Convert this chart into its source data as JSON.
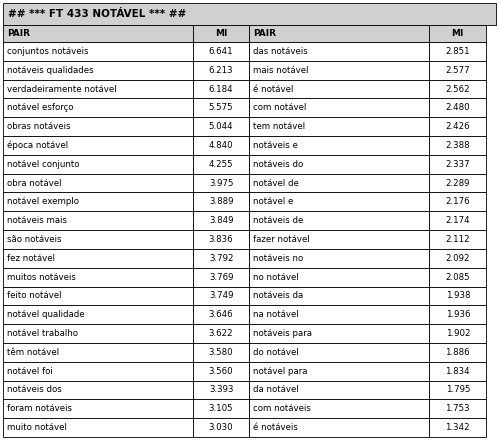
{
  "title": "## *** FT 433 NOTÁVEL *** ##",
  "headers": [
    "PAIR",
    "MI",
    "PAIR",
    "MI"
  ],
  "left_pairs": [
    "conjuntos notáveis",
    "notáveis qualidades",
    "verdadeiramente notável",
    "notável esforço",
    "obras notáveis",
    "época notável",
    "notável conjunto",
    "obra notável",
    "notável exemplo",
    "notáveis mais",
    "são notáveis",
    "fez notável",
    "muitos notáveis",
    "feito notável",
    "notável qualidade",
    "notável trabalho",
    "têm notável",
    "notável foi",
    "notáveis dos",
    "foram notáveis",
    "muito notável"
  ],
  "left_mi": [
    6.641,
    6.213,
    6.184,
    5.575,
    5.044,
    4.84,
    4.255,
    3.975,
    3.889,
    3.849,
    3.836,
    3.792,
    3.769,
    3.749,
    3.646,
    3.622,
    3.58,
    3.56,
    3.393,
    3.105,
    3.03
  ],
  "right_pairs": [
    "das notáveis",
    "mais notável",
    "é notável",
    "com notável",
    "tem notável",
    "notáveis e",
    "notáveis do",
    "notável de",
    "notável e",
    "notáveis de",
    "fazer notável",
    "notáveis no",
    "no notável",
    "notáveis da",
    "na notável",
    "notáveis para",
    "do notável",
    "notável para",
    "da notável",
    "com notáveis",
    "é notáveis"
  ],
  "right_mi": [
    2.851,
    2.577,
    2.562,
    2.48,
    2.426,
    2.388,
    2.337,
    2.289,
    2.176,
    2.174,
    2.112,
    2.092,
    2.085,
    1.938,
    1.936,
    1.902,
    1.886,
    1.834,
    1.795,
    1.753,
    1.342
  ],
  "bg_color": "#ffffff",
  "header_bg": "#d0d0d0",
  "title_bg": "#d0d0d0",
  "border_color": "#000000",
  "text_color": "#000000",
  "font_size": 6.2,
  "header_font_size": 6.5,
  "title_font_size": 7.5
}
